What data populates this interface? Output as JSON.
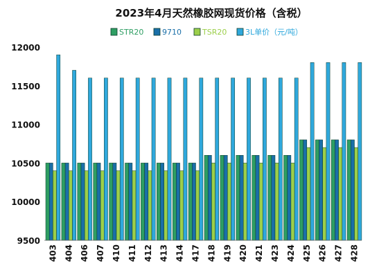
{
  "chart_data": {
    "type": "bar",
    "title": "2023年4月天然橡胶网现货价格（含税）",
    "categories": [
      "403",
      "404",
      "406",
      "407",
      "410",
      "411",
      "412",
      "413",
      "414",
      "417",
      "418",
      "419",
      "420",
      "421",
      "423",
      "424",
      "425",
      "426",
      "427",
      "428"
    ],
    "series": [
      {
        "name": "STR20",
        "color": "#2e9e63",
        "values": [
          10500,
          10500,
          10500,
          10500,
          10500,
          10500,
          10500,
          10500,
          10500,
          10500,
          10600,
          10600,
          10600,
          10600,
          10600,
          10600,
          10800,
          10800,
          10800,
          10800
        ]
      },
      {
        "name": "9710",
        "color": "#1a6fa8",
        "values": [
          10500,
          10500,
          10500,
          10500,
          10500,
          10500,
          10500,
          10500,
          10500,
          10500,
          10600,
          10600,
          10600,
          10600,
          10600,
          10600,
          10800,
          10800,
          10800,
          10800
        ]
      },
      {
        "name": "TSR20",
        "color": "#9ccf4a",
        "values": [
          10400,
          10400,
          10400,
          10400,
          10400,
          10400,
          10400,
          10400,
          10400,
          10400,
          10500,
          10500,
          10500,
          10500,
          10500,
          10500,
          10700,
          10700,
          10700,
          10700
        ]
      },
      {
        "name": "3L单价（元/吨）",
        "color": "#2fa8dc",
        "values": [
          11900,
          11700,
          11600,
          11600,
          11600,
          11600,
          11600,
          11600,
          11600,
          11600,
          11600,
          11600,
          11600,
          11600,
          11600,
          11600,
          11800,
          11800,
          11800,
          11800
        ]
      }
    ],
    "ylim": [
      9500,
      12000
    ],
    "yticks": [
      9500,
      10000,
      10500,
      11000,
      11500,
      12000
    ],
    "grid": false,
    "legend_position": "top"
  }
}
